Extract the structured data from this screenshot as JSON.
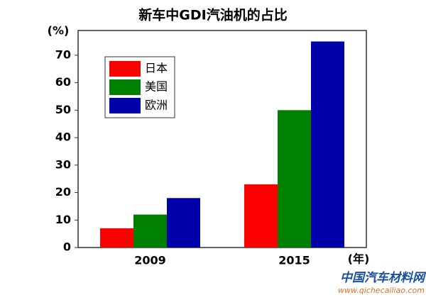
{
  "chart_data": {
    "type": "bar",
    "title": "新车中GDI汽油机的占比",
    "y_label": "(%)",
    "x_label": "(年)",
    "categories": [
      "2009",
      "2015"
    ],
    "series": [
      {
        "name": "日本",
        "color": "#ff0000",
        "values": [
          7,
          23
        ]
      },
      {
        "name": "美国",
        "color": "#008000",
        "values": [
          12,
          50
        ]
      },
      {
        "name": "欧洲",
        "color": "#0000aa",
        "values": [
          18,
          75
        ]
      }
    ],
    "ylim": [
      0,
      79
    ],
    "yticks": [
      0,
      10,
      20,
      30,
      40,
      50,
      60,
      70
    ],
    "grid": false,
    "legend": "upper-left",
    "watermark": {
      "name": "中国汽车材料网",
      "url": "www.qichecailiao.com"
    }
  }
}
